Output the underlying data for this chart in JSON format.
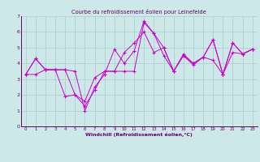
{
  "title": "Courbe du refroidissement éolien pour Leinefelde",
  "xlabel": "Windchill (Refroidissement éolien,°C)",
  "background_color": "#cce8e8",
  "grid_color": "#aacccc",
  "line_color": "#cc00cc",
  "xlim": [
    -0.5,
    23.5
  ],
  "ylim": [
    0,
    7
  ],
  "xticks": [
    0,
    1,
    2,
    3,
    4,
    5,
    6,
    7,
    8,
    9,
    10,
    11,
    12,
    13,
    14,
    15,
    16,
    17,
    18,
    19,
    20,
    21,
    22,
    23
  ],
  "yticks": [
    0,
    1,
    2,
    3,
    4,
    5,
    6,
    7
  ],
  "line1_x": [
    0,
    1,
    2,
    3,
    4,
    5,
    6,
    7,
    8,
    9,
    10,
    11,
    12,
    13,
    14,
    15,
    16,
    17,
    18,
    19,
    20,
    21,
    22,
    23
  ],
  "line1_y": [
    3.3,
    4.3,
    3.6,
    3.6,
    3.6,
    2.0,
    1.6,
    3.1,
    3.5,
    3.5,
    4.7,
    5.3,
    6.0,
    4.7,
    5.0,
    3.5,
    4.5,
    4.0,
    4.4,
    4.2,
    3.3,
    5.3,
    4.6,
    4.9
  ],
  "line2_x": [
    0,
    1,
    2,
    3,
    4,
    5,
    6,
    7,
    8,
    9,
    10,
    11,
    12,
    13,
    14,
    15,
    16,
    17,
    18,
    19,
    20,
    21,
    22,
    23
  ],
  "line2_y": [
    3.3,
    4.3,
    3.6,
    3.6,
    1.9,
    2.0,
    1.3,
    2.3,
    3.5,
    3.5,
    3.5,
    3.5,
    6.6,
    5.9,
    4.5,
    3.5,
    4.5,
    3.9,
    4.4,
    5.5,
    3.3,
    5.3,
    4.6,
    4.9
  ],
  "line3_x": [
    0,
    1,
    2,
    3,
    4,
    5,
    6,
    7,
    8,
    9,
    10,
    11,
    12,
    13,
    14,
    15,
    16,
    17,
    18,
    19,
    20,
    21,
    22,
    23
  ],
  "line3_y": [
    3.3,
    3.3,
    3.6,
    3.6,
    3.6,
    3.5,
    1.0,
    2.5,
    3.3,
    4.9,
    4.0,
    4.8,
    6.7,
    5.9,
    5.0,
    3.5,
    4.6,
    4.0,
    4.4,
    5.5,
    3.3,
    4.7,
    4.6,
    4.9
  ]
}
